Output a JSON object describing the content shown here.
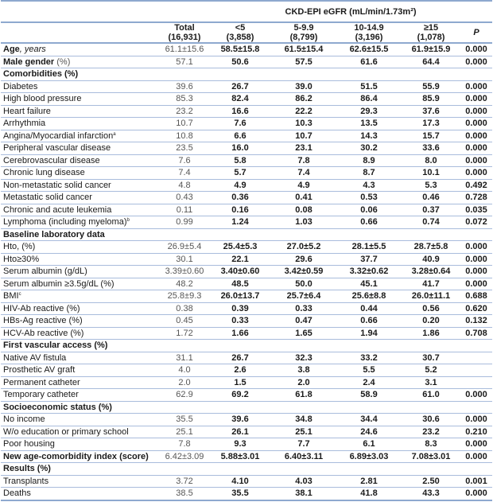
{
  "header": {
    "group_title": "CKD-EPI eGFR (mL/min/1.73m²)",
    "columns": [
      {
        "label": "Total",
        "n": "(16,931)"
      },
      {
        "label": "<5",
        "n": "(3,858)"
      },
      {
        "label": "5-9.9",
        "n": "(8,799)"
      },
      {
        "label": "10-14.9",
        "n": "(3,196)"
      },
      {
        "label": "≥15",
        "n": "(1,078)"
      }
    ],
    "p_label": "P"
  },
  "rows": [
    {
      "label": "Age",
      "suffix": ", years",
      "suffix_style": "it",
      "bold": true,
      "values": [
        "61.1±15.6",
        "58.5±15.8",
        "61.5±15.4",
        "62.6±15.5",
        "61.9±15.9",
        "0.000"
      ]
    },
    {
      "label": "Male gender",
      "suffix": " (%)",
      "suffix_style": "nrm",
      "bold": true,
      "values": [
        "57.1",
        "50.6",
        "57.5",
        "61.6",
        "64.4",
        "0.000"
      ]
    },
    {
      "label": "Comorbidities (%)",
      "section": true
    },
    {
      "label": "Diabetes",
      "values": [
        "39.6",
        "26.7",
        "39.0",
        "51.5",
        "55.9",
        "0.000"
      ]
    },
    {
      "label": "High blood pressure",
      "values": [
        "85.3",
        "82.4",
        "86.2",
        "86.4",
        "85.9",
        "0.000"
      ]
    },
    {
      "label": "Heart failure",
      "values": [
        "23.2",
        "16.6",
        "22.2",
        "29.3",
        "37.6",
        "0.000"
      ]
    },
    {
      "label": "Arrhythmia",
      "values": [
        "10.7",
        "7.6",
        "10.3",
        "13.5",
        "17.3",
        "0.000"
      ]
    },
    {
      "label": "Angina/Myocardial infarction",
      "sup": "a",
      "values": [
        "10.8",
        "6.6",
        "10.7",
        "14.3",
        "15.7",
        "0.000"
      ]
    },
    {
      "label": "Peripheral vascular disease",
      "values": [
        "23.5",
        "16.0",
        "23.1",
        "30.2",
        "33.6",
        "0.000"
      ]
    },
    {
      "label": "Cerebrovascular disease",
      "values": [
        "7.6",
        "5.8",
        "7.8",
        "8.9",
        "8.0",
        "0.000"
      ]
    },
    {
      "label": "Chronic lung disease",
      "values": [
        "7.4",
        "5.7",
        "7.4",
        "8.7",
        "10.1",
        "0.000"
      ]
    },
    {
      "label": "Non-metastatic solid cancer",
      "values": [
        "4.8",
        "4.9",
        "4.9",
        "4.3",
        "5.3",
        "0.492"
      ]
    },
    {
      "label": "Metastatic solid cancer",
      "values": [
        "0.43",
        "0.36",
        "0.41",
        "0.53",
        "0.46",
        "0.728"
      ]
    },
    {
      "label": "Chronic and acute leukemia",
      "values": [
        "0.11",
        "0.16",
        "0.08",
        "0.06",
        "0.37",
        "0.035"
      ]
    },
    {
      "label": "Lymphoma (including myeloma)",
      "sup": "b",
      "values": [
        "0.99",
        "1.24",
        "1.03",
        "0.66",
        "0.74",
        "0.072"
      ]
    },
    {
      "label": "Baseline laboratory data",
      "section": true
    },
    {
      "label": "Hto, (%)",
      "values": [
        "26.9±5.4",
        "25.4±5.3",
        "27.0±5.2",
        "28.1±5.5",
        "28.7±5.8",
        "0.000"
      ]
    },
    {
      "label": "Hto≥30%",
      "values": [
        "30.1",
        "22.1",
        "29.6",
        "37.7",
        "40.9",
        "0.000"
      ]
    },
    {
      "label": "Serum albumin (g/dL)",
      "values": [
        "3.39±0.60",
        "3.40±0.60",
        "3.42±0.59",
        "3.32±0.62",
        "3.28±0.64",
        "0.000"
      ]
    },
    {
      "label": "Serum albumin ≥3.5g/dL (%)",
      "values": [
        "48.2",
        "48.5",
        "50.0",
        "45.1",
        "41.7",
        "0.000"
      ]
    },
    {
      "label": "BMI",
      "sup": "c",
      "values": [
        "25.8±9.3",
        "26.0±13.7",
        "25.7±6.4",
        "25.6±8.8",
        "26.0±11.1",
        "0.688"
      ]
    },
    {
      "label": "HIV-Ab reactive (%)",
      "values": [
        "0.38",
        "0.39",
        "0.33",
        "0.44",
        "0.56",
        "0.620"
      ]
    },
    {
      "label": "HBs-Ag reactive (%)",
      "values": [
        "0.45",
        "0.33",
        "0.47",
        "0.66",
        "0.20",
        "0.132"
      ]
    },
    {
      "label": "HCV-Ab reactive (%)",
      "values": [
        "1.72",
        "1.66",
        "1.65",
        "1.94",
        "1.86",
        "0.708"
      ]
    },
    {
      "label": "First vascular access (%)",
      "section": true
    },
    {
      "label": "Native AV fistula",
      "values": [
        "31.1",
        "26.7",
        "32.3",
        "33.2",
        "30.7",
        ""
      ]
    },
    {
      "label": "Prosthetic AV graft",
      "values": [
        "4.0",
        "2.6",
        "3.8",
        "5.5",
        "5.2",
        ""
      ]
    },
    {
      "label": "Permanent catheter",
      "values": [
        "2.0",
        "1.5",
        "2.0",
        "2.4",
        "3.1",
        ""
      ]
    },
    {
      "label": "Temporary catheter",
      "values": [
        "62.9",
        "69.2",
        "61.8",
        "58.9",
        "61.0",
        "0.000"
      ]
    },
    {
      "label": "Socioeconomic status (%)",
      "section": true
    },
    {
      "label": "No income",
      "values": [
        "35.5",
        "39.6",
        "34.8",
        "34.4",
        "30.6",
        "0.000"
      ]
    },
    {
      "label": "W/o education or primary school",
      "values": [
        "25.1",
        "26.1",
        "25.1",
        "24.6",
        "23.2",
        "0.210"
      ]
    },
    {
      "label": "Poor housing",
      "values": [
        "7.8",
        "9.3",
        "7.7",
        "6.1",
        "8.3",
        "0.000"
      ]
    },
    {
      "label": "New age-comorbidity index (score)",
      "bold": true,
      "values": [
        "6.42±3.09",
        "5.88±3.01",
        "6.40±3.11",
        "6.89±3.03",
        "7.08±3.01",
        "0.000"
      ]
    },
    {
      "label": "Results (%)",
      "section": true
    },
    {
      "label": "Transplants",
      "values": [
        "3.72",
        "4.10",
        "4.03",
        "2.81",
        "2.50",
        "0.001"
      ]
    },
    {
      "label": "Deaths",
      "values": [
        "38.5",
        "35.5",
        "38.1",
        "41.8",
        "43.3",
        "0.000"
      ]
    }
  ]
}
